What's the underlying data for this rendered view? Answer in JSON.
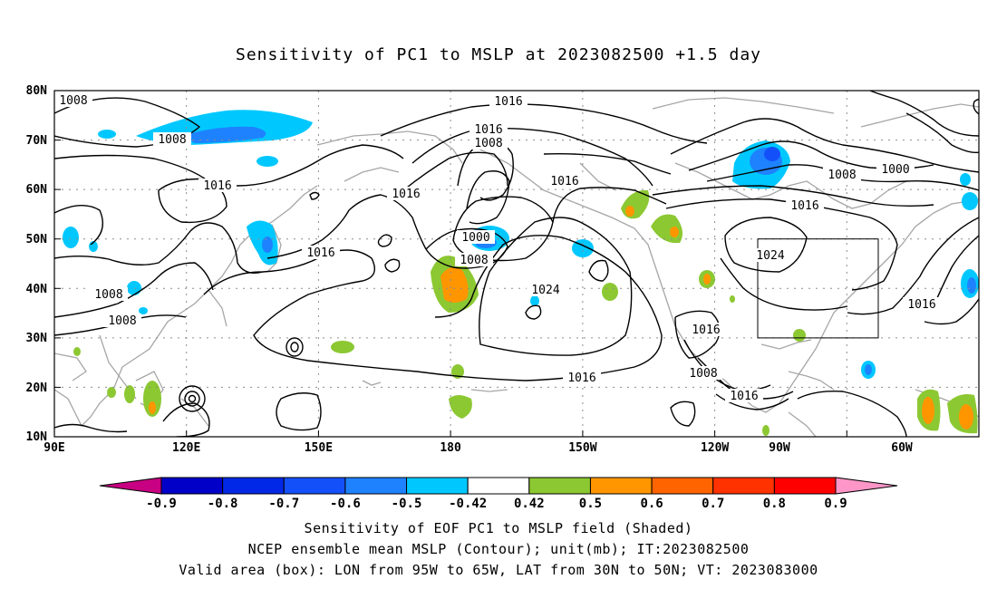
{
  "title": "Sensitivity of PC1 to MSLP at 2023082500 +1.5 day",
  "map": {
    "lat_labels": [
      "80N",
      "70N",
      "60N",
      "50N",
      "40N",
      "30N",
      "20N",
      "10N"
    ],
    "lon_labels": [
      "90E",
      "120E",
      "150E",
      "180",
      "150W",
      "120W",
      "90W",
      "60W"
    ],
    "contour_labels": [
      "1008",
      "1008",
      "1008",
      "1016",
      "1016",
      "1016",
      "1008",
      "1016",
      "1016",
      "1000",
      "1008",
      "1016",
      "1008",
      "1000",
      "1016",
      "1024",
      "1024",
      "1016",
      "1008",
      "1016",
      "1016",
      "1008",
      "1016",
      "1016"
    ],
    "colors": {
      "contour": "#000000",
      "coast": "#a6a6a6",
      "grid": "#8c8c8c"
    }
  },
  "colorbar": {
    "labels": [
      "-0.9",
      "-0.8",
      "-0.7",
      "-0.6",
      "-0.5",
      "-0.42",
      "0.42",
      "0.5",
      "0.6",
      "0.7",
      "0.8",
      "0.9"
    ],
    "colors": [
      "#c80082",
      "#0000c8",
      "#0028e6",
      "#1450fa",
      "#1e82ff",
      "#00c8ff",
      "#ffffff",
      "#8cc832",
      "#ff9600",
      "#ff6400",
      "#ff3200",
      "#ff0000",
      "#ff96c8"
    ]
  },
  "caption": {
    "line1": "Sensitivity of EOF PC1 to MSLP field (Shaded)",
    "line2": "NCEP ensemble mean MSLP (Contour); unit(mb); IT:2023082500",
    "line3": "Valid area (box): LON from 95W to 65W, LAT from 30N to 50N; VT: 2023083000"
  }
}
